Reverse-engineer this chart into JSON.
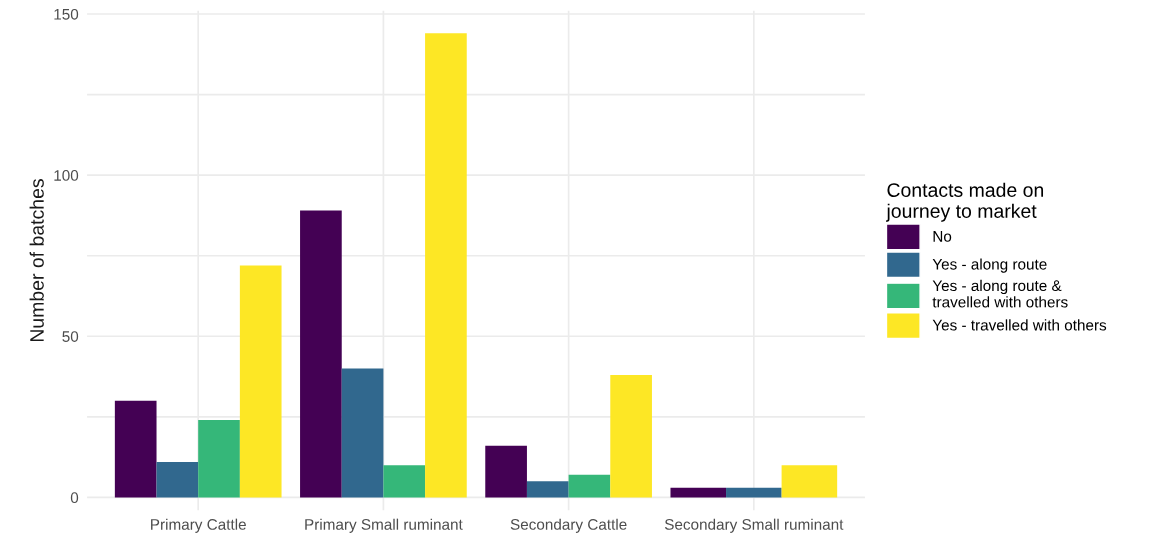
{
  "chart_data": {
    "type": "bar",
    "ylabel": "Number of batches",
    "legend_title": "Contacts made on\njourney to market",
    "categories": [
      "Primary Cattle",
      "Primary Small ruminant",
      "Secondary Cattle",
      "Secondary Small ruminant"
    ],
    "series": [
      {
        "name": "No",
        "color": "#440154",
        "values": [
          30,
          89,
          16,
          3
        ]
      },
      {
        "name": "Yes - along route",
        "color": "#31688e",
        "values": [
          11,
          40,
          5,
          3
        ]
      },
      {
        "name": "Yes - along route &\ntravelled with others",
        "color": "#35b779",
        "values": [
          24,
          10,
          7,
          null
        ]
      },
      {
        "name": "Yes - travelled with others",
        "color": "#fde725",
        "values": [
          72,
          144,
          38,
          10
        ]
      }
    ],
    "ylim": [
      -4,
      151
    ],
    "yticks": [
      0,
      {
        "value": 25,
        "label": null
      },
      50,
      {
        "value": 75,
        "label": null
      },
      100,
      {
        "value": 125,
        "label": null
      },
      150
    ],
    "grid": true,
    "legend": "right"
  }
}
